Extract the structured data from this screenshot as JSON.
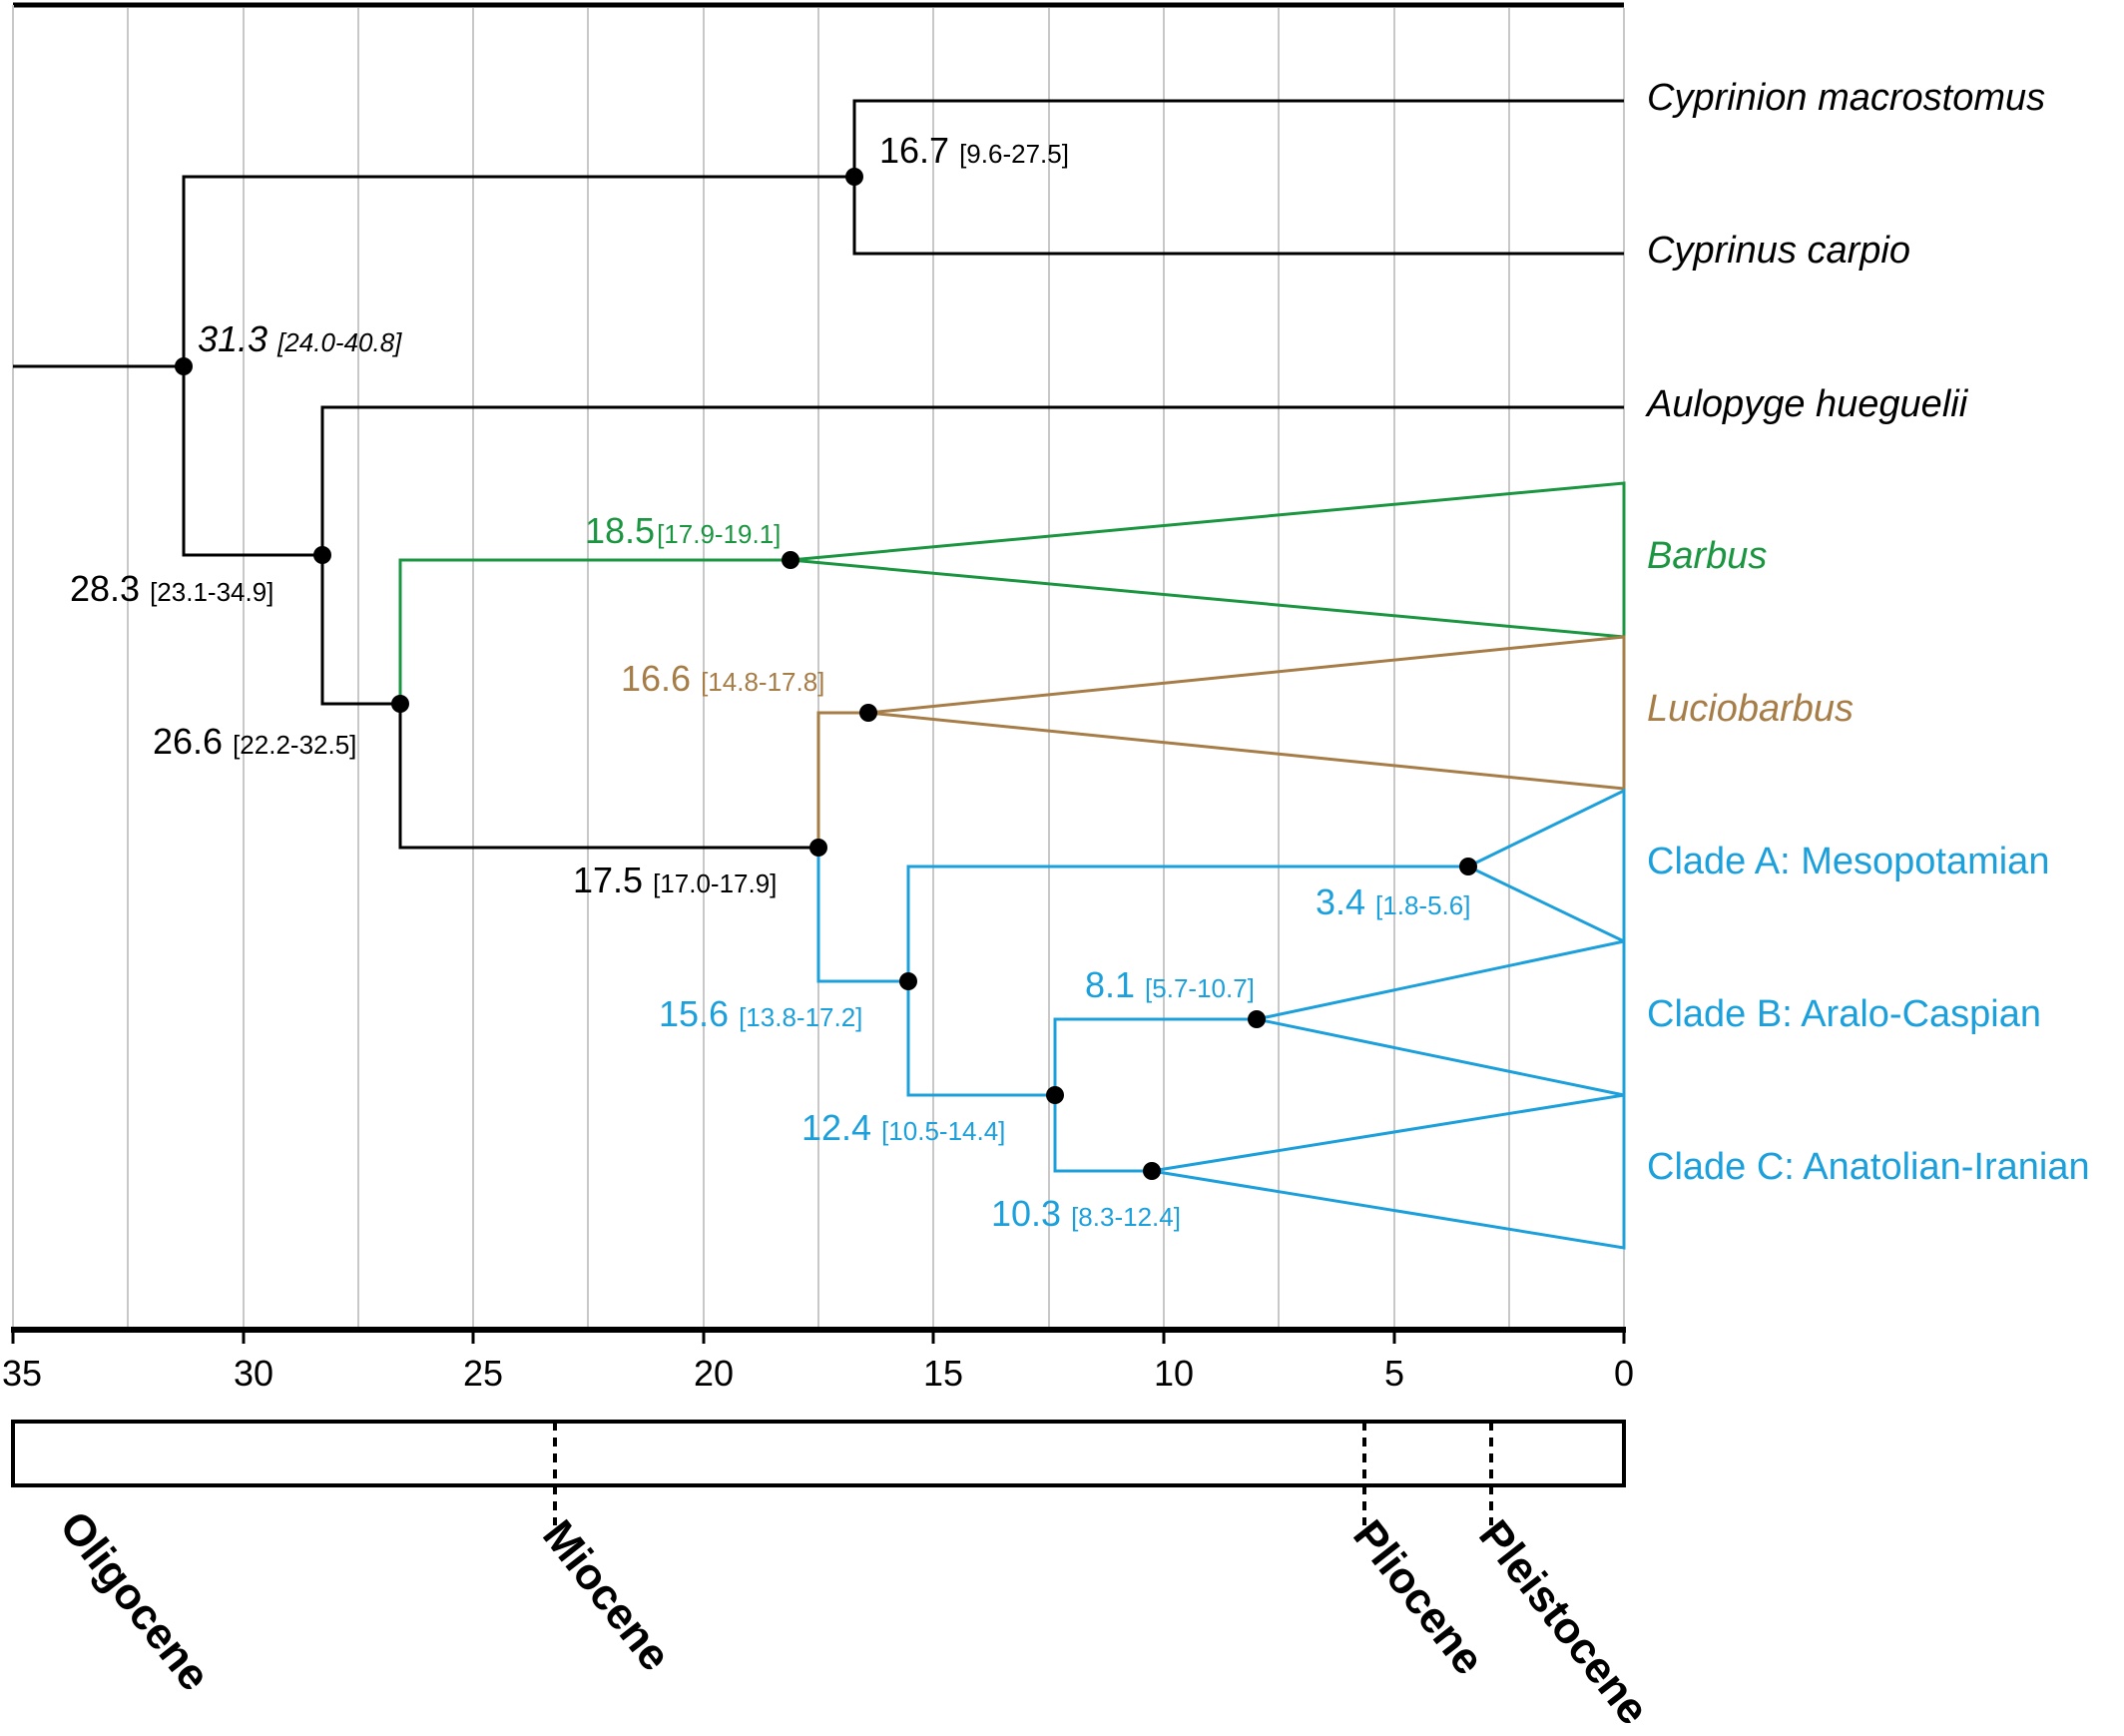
{
  "colors": {
    "outgroup": "#000000",
    "barbus": "#1a9640",
    "luciobarbus": "#a67c47",
    "clades": "#1ca0dc",
    "grid": "#c8c8c8"
  },
  "axis": {
    "unit": "Ma",
    "range": [
      35,
      0
    ],
    "ticks": [
      "35",
      "30",
      "25",
      "20",
      "15",
      "10",
      "5",
      "0"
    ]
  },
  "taxa": [
    {
      "key": "cyprinion",
      "label": "Cyprinion macrostomus",
      "italic": true,
      "color": "outgroup"
    },
    {
      "key": "cyprinus",
      "label": "Cyprinus carpio",
      "italic": true,
      "color": "outgroup"
    },
    {
      "key": "aulopyge",
      "label": "Aulopyge hueguelii",
      "italic": true,
      "color": "outgroup"
    },
    {
      "key": "barbus",
      "label": "Barbus",
      "italic": true,
      "color": "barbus"
    },
    {
      "key": "luciobarbus",
      "label": "Luciobarbus",
      "italic": true,
      "color": "luciobarbus"
    },
    {
      "key": "clade_a",
      "label": "Clade A: Mesopotamian",
      "italic": false,
      "color": "clades"
    },
    {
      "key": "clade_b",
      "label": "Clade B: Aralo-Caspian",
      "italic": false,
      "color": "clades"
    },
    {
      "key": "clade_c",
      "label": "Clade C: Anatolian-Iranian",
      "italic": false,
      "color": "clades"
    }
  ],
  "nodes": [
    {
      "key": "root",
      "age": "31.3",
      "ci": "[24.0-40.8]",
      "age_ma": 31.3,
      "italic": true,
      "color": "outgroup"
    },
    {
      "key": "cyprinion_cyprinus",
      "age": "16.7",
      "ci": "[9.6-27.5]",
      "age_ma": 16.7,
      "italic": false,
      "color": "outgroup"
    },
    {
      "key": "aulopyge_split",
      "age": "28.3",
      "ci": "[23.1-34.9]",
      "age_ma": 28.3,
      "italic": false,
      "color": "outgroup"
    },
    {
      "key": "barbus_split",
      "age": "26.6",
      "ci": "[22.2-32.5]",
      "age_ma": 26.6,
      "italic": false,
      "color": "outgroup"
    },
    {
      "key": "barbus_crown",
      "age": "18.5",
      "ci": "[17.9-19.1]",
      "age_ma": 18.5,
      "italic": false,
      "color": "barbus"
    },
    {
      "key": "luciobarbus_split",
      "age": "17.5",
      "ci": "[17.0-17.9]",
      "age_ma": 17.5,
      "italic": false,
      "color": "outgroup"
    },
    {
      "key": "luciobarbus_crown",
      "age": "16.6",
      "ci": "[14.8-17.8]",
      "age_ma": 16.6,
      "italic": false,
      "color": "luciobarbus"
    },
    {
      "key": "clade_abc",
      "age": "15.6",
      "ci": "[13.8-17.2]",
      "age_ma": 15.6,
      "italic": false,
      "color": "clades"
    },
    {
      "key": "clade_a_crown",
      "age": "3.4",
      "ci": "[1.8-5.6]",
      "age_ma": 3.4,
      "italic": false,
      "color": "clades"
    },
    {
      "key": "clade_bc",
      "age": "12.4",
      "ci": "[10.5-14.4]",
      "age_ma": 12.4,
      "italic": false,
      "color": "clades"
    },
    {
      "key": "clade_b_crown",
      "age": "8.1",
      "ci": "[5.7-10.7]",
      "age_ma": 8.1,
      "italic": false,
      "color": "clades"
    },
    {
      "key": "clade_c_crown",
      "age": "10.3",
      "ci": "[8.3-12.4]",
      "age_ma": 10.3,
      "italic": false,
      "color": "clades"
    }
  ],
  "epochs": [
    {
      "label": "Oligocene",
      "boundary_ma": 35
    },
    {
      "label": "Miocene",
      "boundary_ma": 23.03
    },
    {
      "label": "Pliocene",
      "boundary_ma": 5.33
    },
    {
      "label": "Pleistocene",
      "boundary_ma": 2.58
    }
  ]
}
